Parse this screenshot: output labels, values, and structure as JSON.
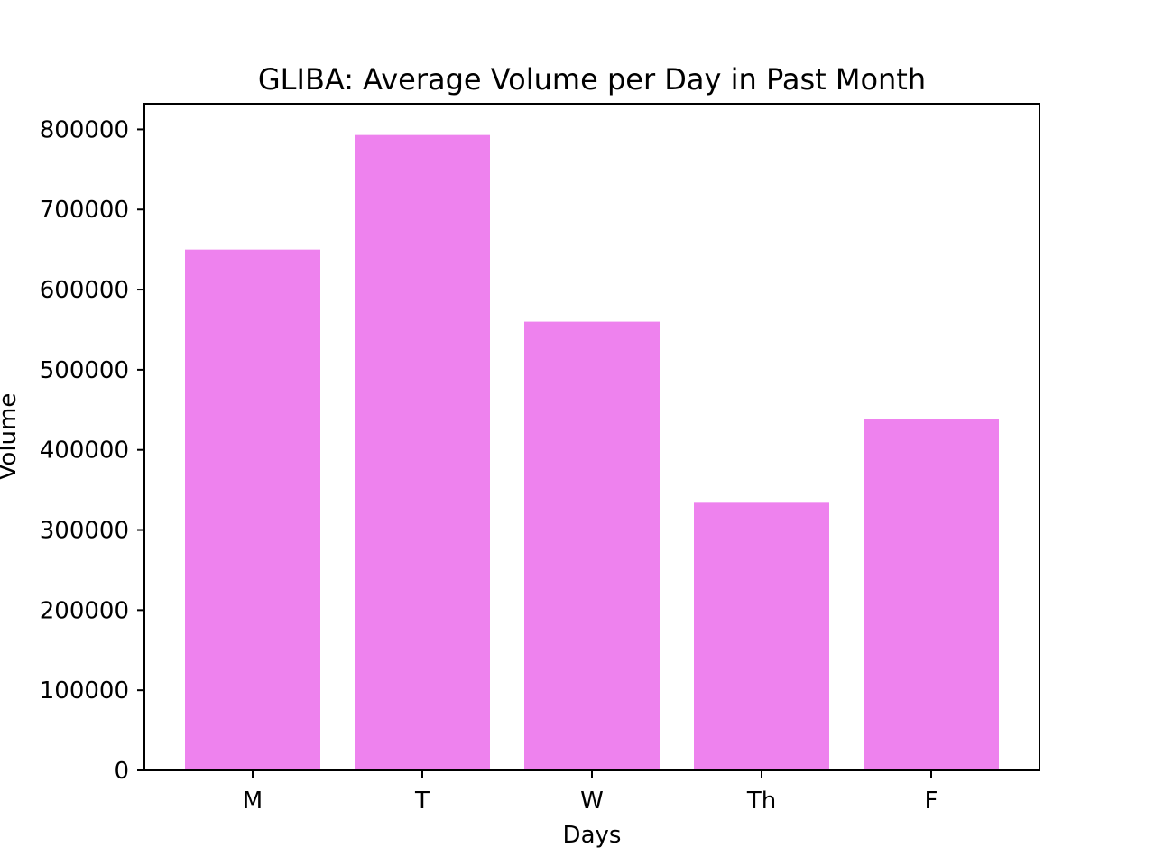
{
  "chart_data": {
    "type": "bar",
    "title": "GLIBA: Average Volume per Day in Past Month",
    "xlabel": "Days",
    "ylabel": "Volume",
    "categories": [
      "M",
      "T",
      "W",
      "Th",
      "F"
    ],
    "values": [
      650000,
      793000,
      560000,
      334000,
      438000
    ],
    "ylim": [
      0,
      832000
    ],
    "yticks": [
      0,
      100000,
      200000,
      300000,
      400000,
      500000,
      600000,
      700000,
      800000
    ],
    "bar_color": "#ee82ee",
    "grid": false,
    "legend": "none"
  }
}
